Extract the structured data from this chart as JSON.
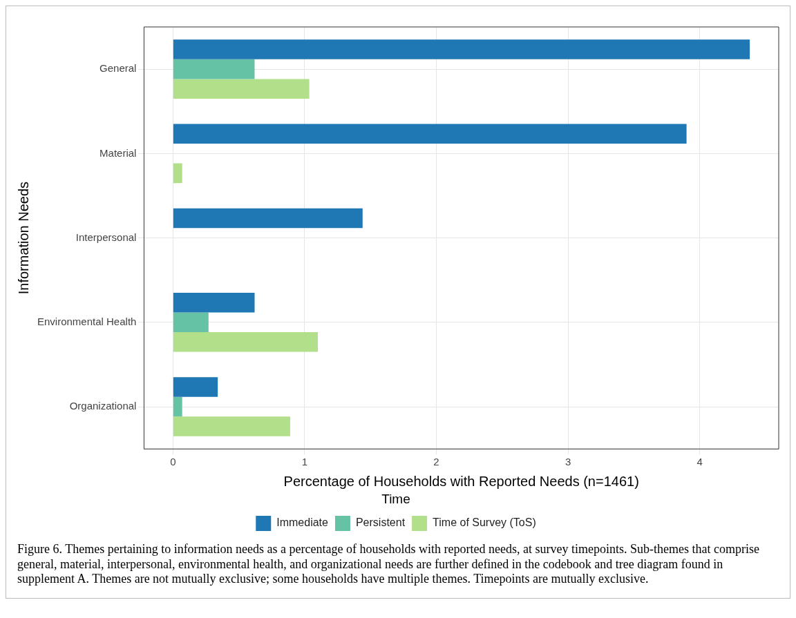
{
  "chart_data": {
    "type": "bar",
    "orientation": "horizontal",
    "categories": [
      "General",
      "Material",
      "Interpersonal",
      "Environmental Health",
      "Organizational"
    ],
    "series": [
      {
        "name": "Immediate",
        "color": "#1f78b4",
        "values": [
          4.38,
          3.9,
          1.44,
          0.62,
          0.34
        ]
      },
      {
        "name": "Persistent",
        "color": "#66c2a5",
        "values": [
          0.62,
          0,
          0,
          0.27,
          0.07
        ]
      },
      {
        "name": "Time of Survey (ToS)",
        "color": "#b2df8a",
        "values": [
          1.035,
          0.07,
          0,
          1.1,
          0.89
        ]
      }
    ],
    "xlim": [
      -0.22,
      4.6
    ],
    "xticks": [
      0,
      1,
      2,
      3,
      4
    ],
    "xlabel": "Percentage of Households with Reported Needs (n=1461)",
    "ylabel": "Information Needs",
    "legend_title": "Time",
    "legend": "bottom",
    "grid": true,
    "annotations": [
      "Figure 6. Themes pertaining to information needs as a percentage of households with reported needs, at survey timepoints. Sub-themes that comprise general, material, interpersonal, environmental health, and organizational needs are further defined in the codebook and tree diagram found in supplement A. Themes are not mutually exclusive; some households have multiple themes. Timepoints are mutually exclusive."
    ]
  }
}
